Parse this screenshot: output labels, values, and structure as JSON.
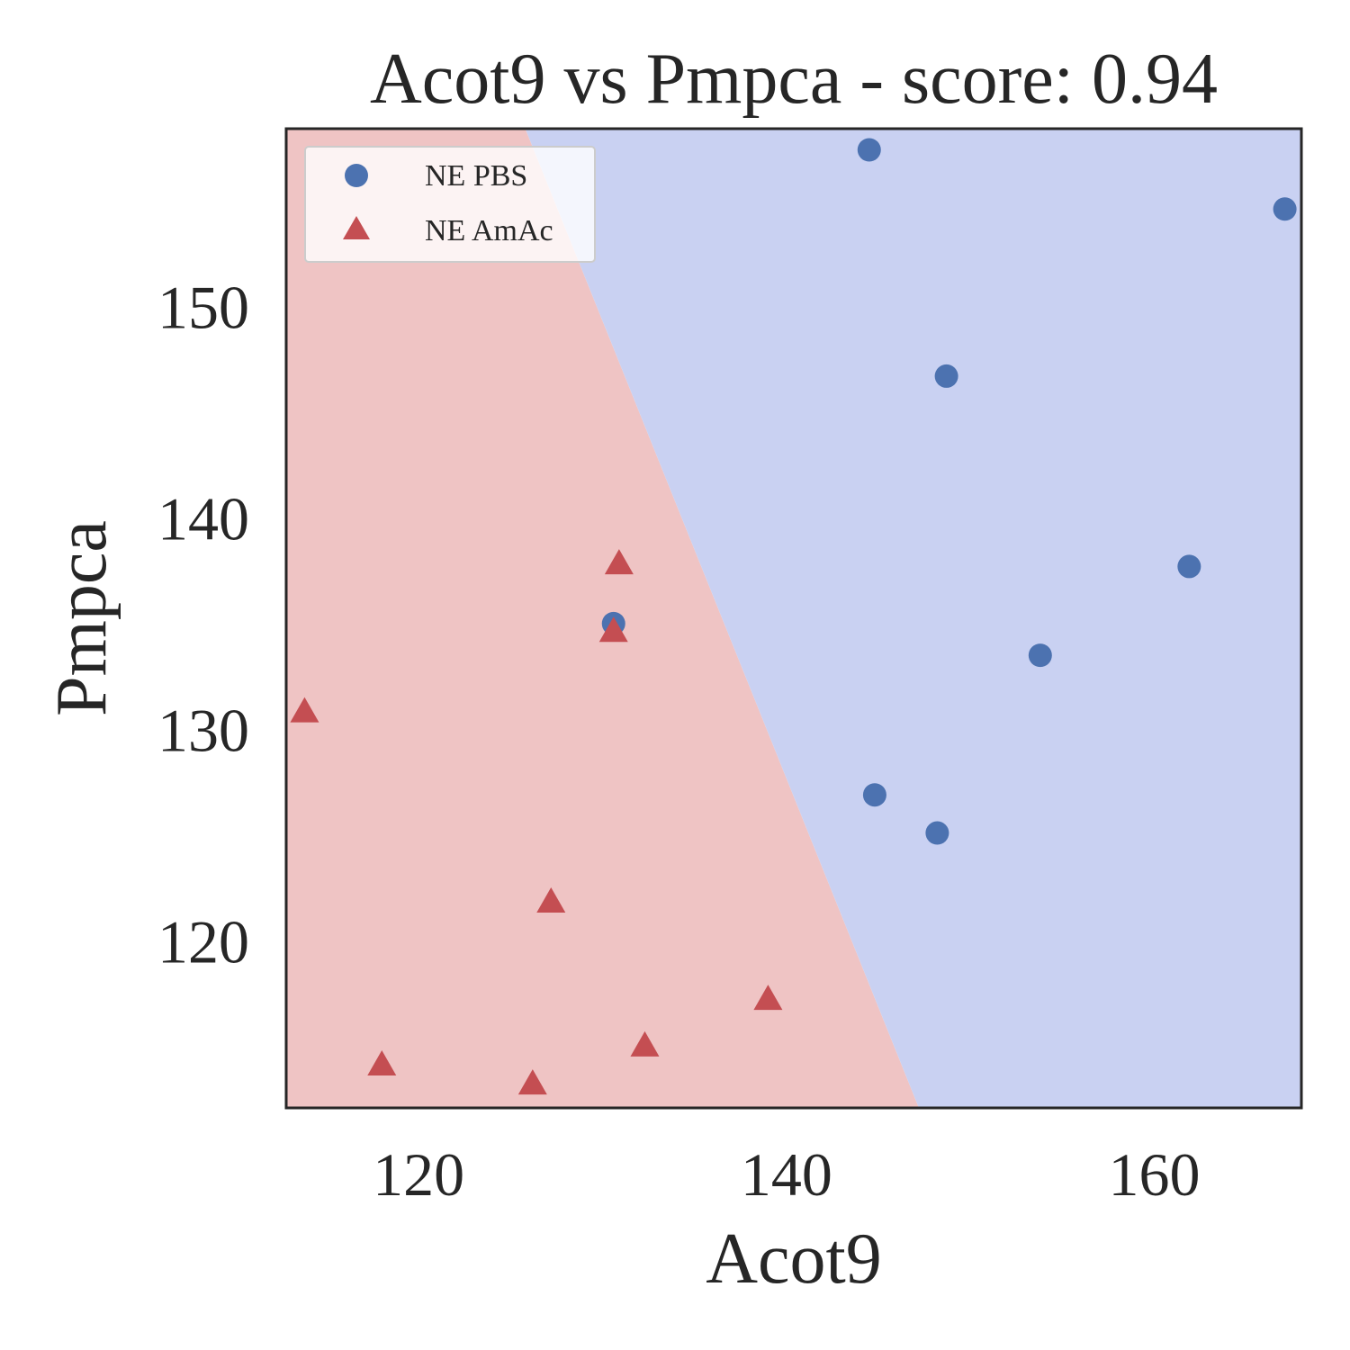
{
  "chart_data": {
    "type": "scatter",
    "title": "Acot9 vs Pmpca - score: 0.94",
    "xlabel": "Acot9",
    "ylabel": "Pmpca",
    "xlim": [
      112.8,
      168.0
    ],
    "ylim": [
      112.1,
      158.4
    ],
    "xticks": [
      120,
      140,
      160
    ],
    "yticks": [
      120,
      130,
      140,
      150
    ],
    "grid": false,
    "legend_position": "top-left",
    "decision_boundary": [
      [
        125.8,
        158.4
      ],
      [
        147.2,
        112.1
      ]
    ],
    "regions": {
      "left_color": "#efc4c4",
      "right_color": "#c9d1f2"
    },
    "series": [
      {
        "name": "NE PBS",
        "marker": "circle",
        "color": "#4c72b0",
        "points": [
          [
            144.5,
            157.4
          ],
          [
            167.1,
            154.6
          ],
          [
            148.7,
            146.7
          ],
          [
            161.9,
            137.7
          ],
          [
            130.6,
            135.0
          ],
          [
            153.8,
            133.5
          ],
          [
            144.8,
            126.9
          ],
          [
            148.2,
            125.1
          ]
        ]
      },
      {
        "name": "NE AmAc",
        "marker": "triangle",
        "color": "#c44e52",
        "points": [
          [
            130.9,
            137.8
          ],
          [
            130.6,
            134.6
          ],
          [
            113.8,
            130.8
          ],
          [
            127.2,
            121.8
          ],
          [
            139.0,
            117.2
          ],
          [
            132.3,
            115.0
          ],
          [
            118.0,
            114.1
          ],
          [
            126.2,
            113.2
          ]
        ]
      }
    ]
  }
}
